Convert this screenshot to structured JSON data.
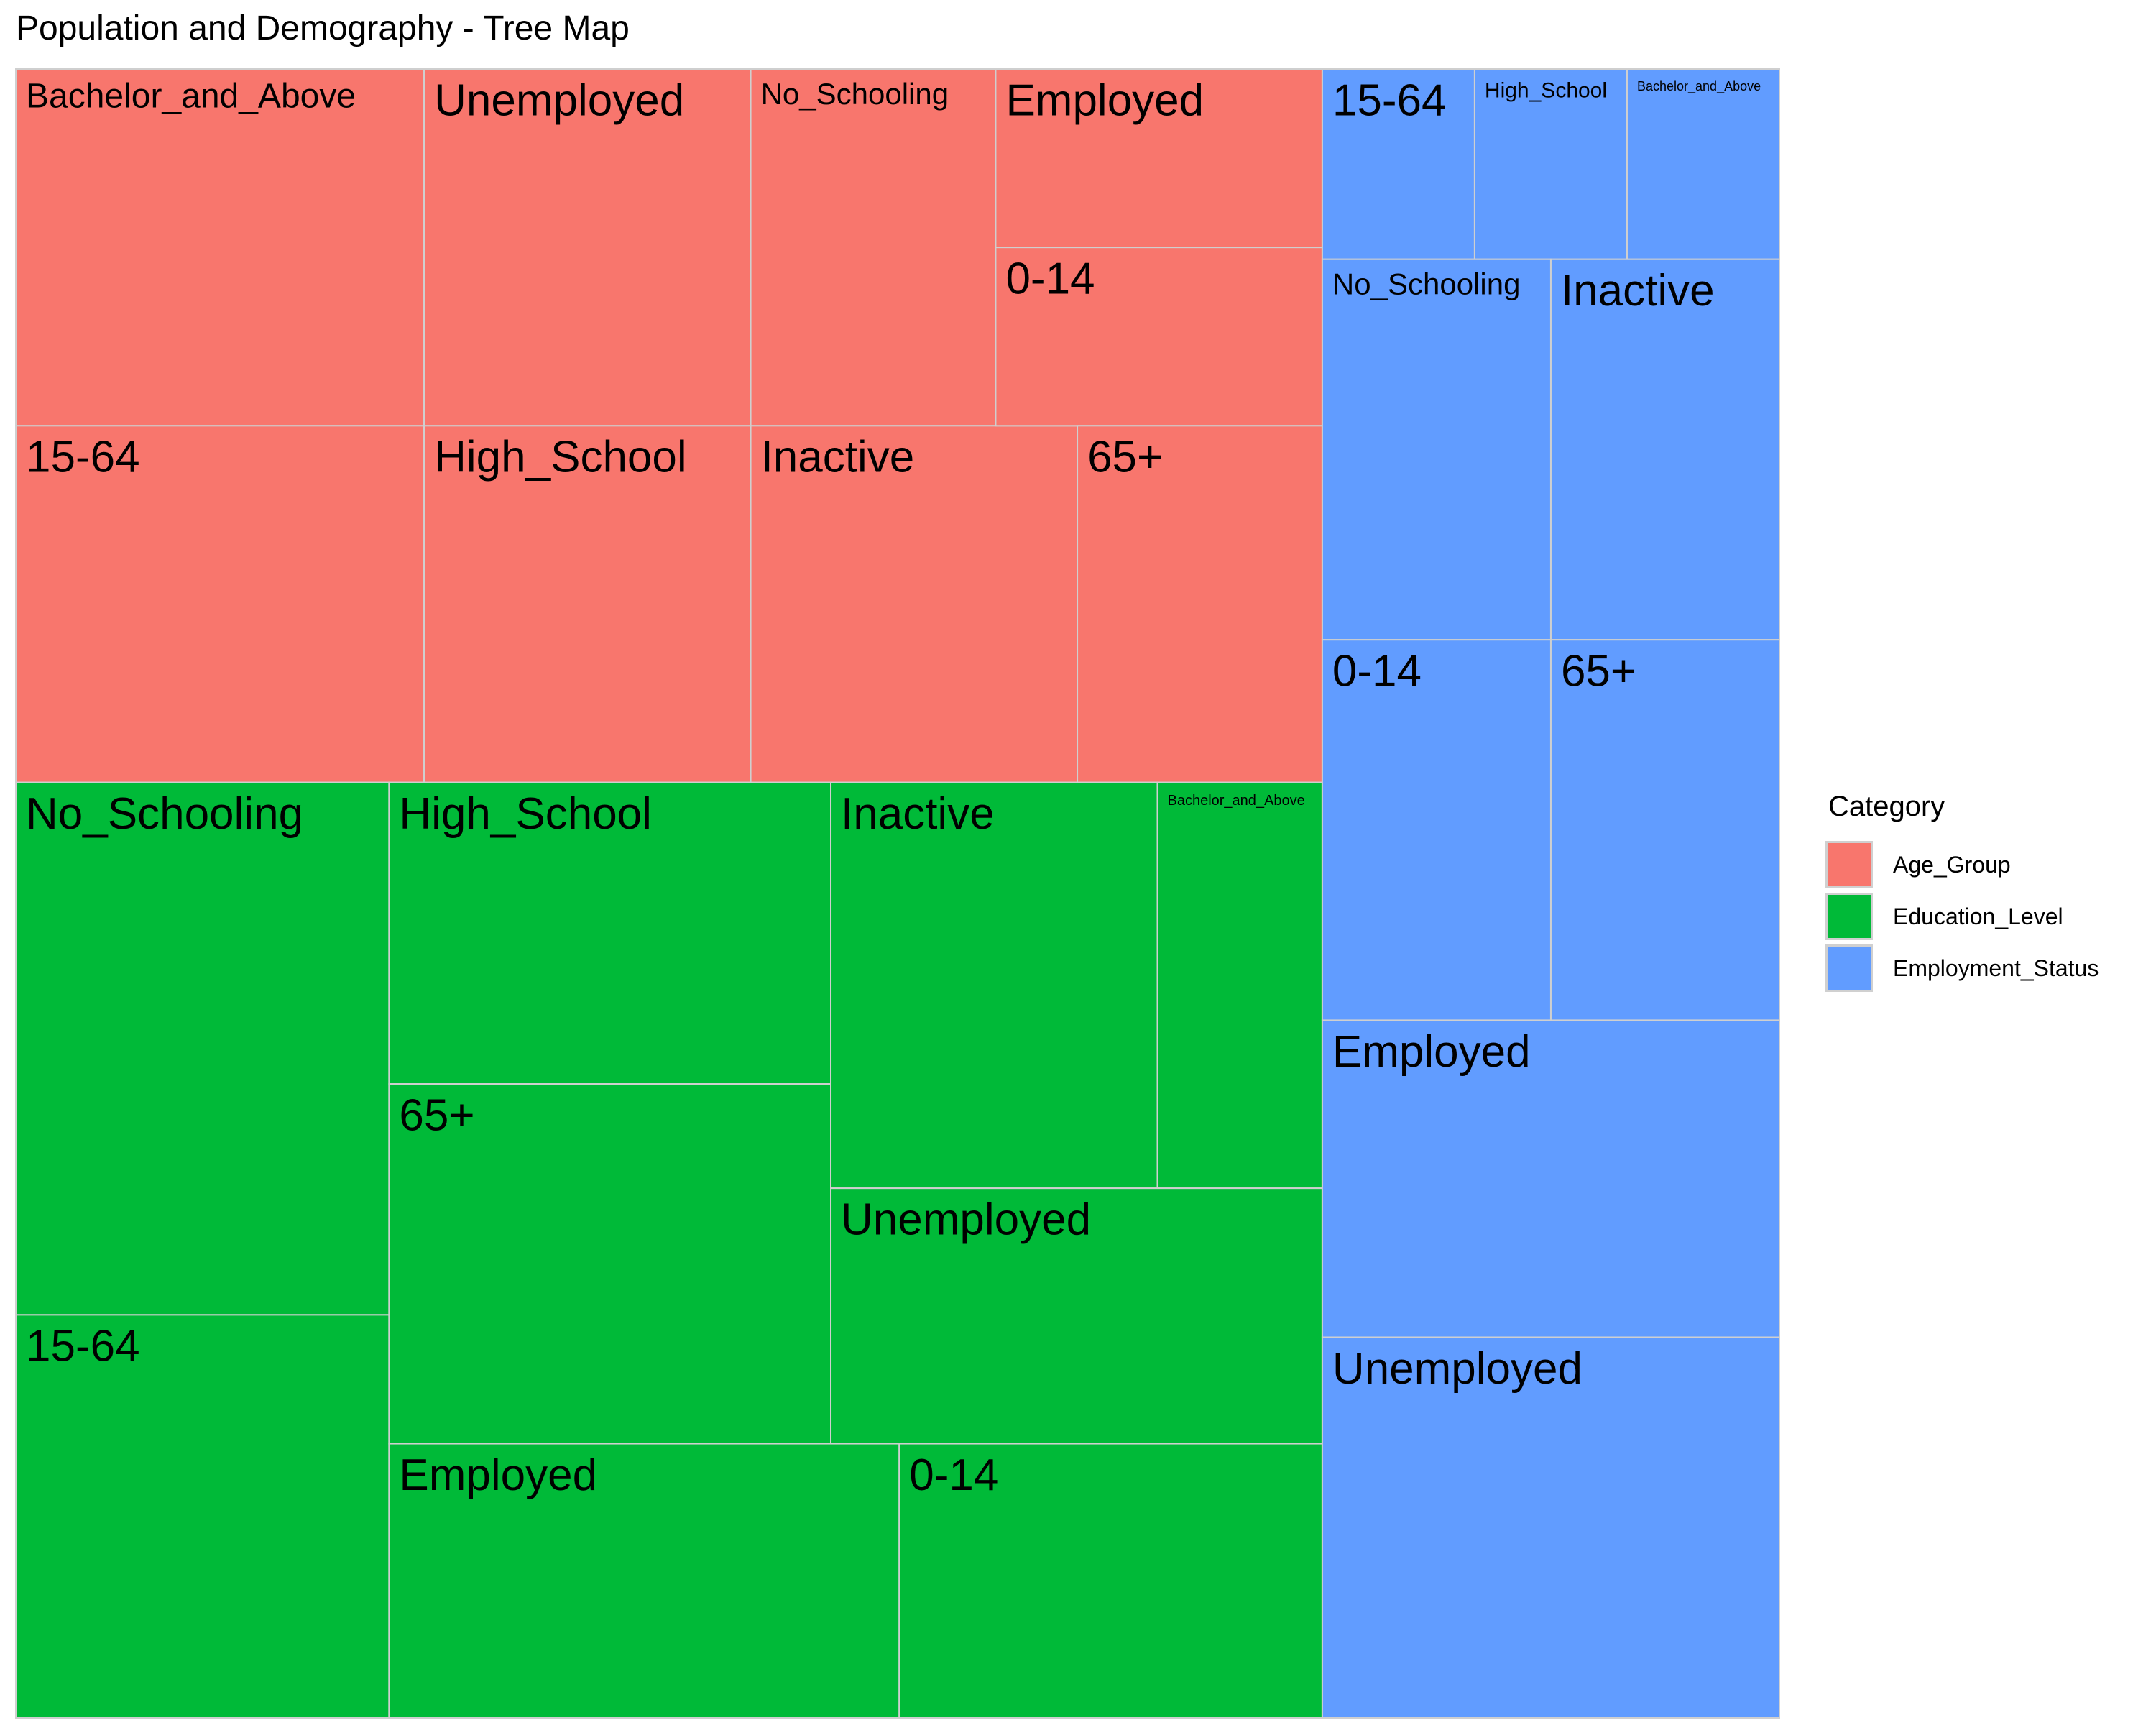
{
  "chart_data": {
    "type": "treemap",
    "title": "Population and Demography - Tree Map",
    "legend": {
      "title": "Category",
      "position": "right",
      "entries": [
        {
          "name": "Age_Group",
          "color": "#F8766D"
        },
        {
          "name": "Education_Level",
          "color": "#00BA38"
        },
        {
          "name": "Employment_Status",
          "color": "#619CFF"
        }
      ]
    },
    "groups": [
      {
        "category": "Age_Group",
        "color": "#F8766D",
        "items": [
          {
            "label": "Bachelor_and_Above",
            "value": 5.6
          },
          {
            "label": "15-64",
            "value": 5.6
          },
          {
            "label": "Unemployed",
            "value": 4.5
          },
          {
            "label": "High_School",
            "value": 4.5
          },
          {
            "label": "No_Schooling",
            "value": 3.35
          },
          {
            "label": "Inactive",
            "value": 3.45
          },
          {
            "label": "Employed",
            "value": 2.25
          },
          {
            "label": "0-14",
            "value": 2.25
          },
          {
            "label": "65+",
            "value": 2.35
          }
        ]
      },
      {
        "category": "Education_Level",
        "color": "#00BA38",
        "items": [
          {
            "label": "No_Schooling",
            "value": 6.76
          },
          {
            "label": "15-64",
            "value": 4.97
          },
          {
            "label": "High_School",
            "value": 4.55
          },
          {
            "label": "65+",
            "value": 3.52
          },
          {
            "label": "Inactive",
            "value": 4.52
          },
          {
            "label": "Bachelor_and_Above",
            "value": 2.21
          },
          {
            "label": "Unemployed",
            "value": 4.47
          },
          {
            "label": "Employed",
            "value": 6.6
          },
          {
            "label": "0-14",
            "value": 5.49
          }
        ]
      },
      {
        "category": "Employment_Status",
        "color": "#619CFF",
        "items": [
          {
            "label": "15-64",
            "value": 1.15
          },
          {
            "label": "High_School",
            "value": 1.15
          },
          {
            "label": "Bachelor_and_Above",
            "value": 1.15
          },
          {
            "label": "No_Schooling",
            "value": 3.4
          },
          {
            "label": "Inactive",
            "value": 3.4
          },
          {
            "label": "0-14",
            "value": 3.4
          },
          {
            "label": "65+",
            "value": 3.4
          },
          {
            "label": "Employed",
            "value": 5.7
          },
          {
            "label": "Unemployed",
            "value": 5.7
          }
        ]
      }
    ]
  }
}
